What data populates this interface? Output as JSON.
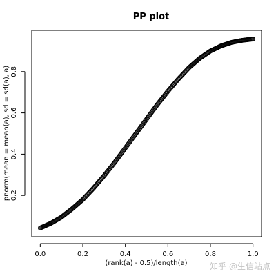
{
  "chart_data": {
    "type": "scatter",
    "title": "PP plot",
    "xlabel": "(rank(a) - 0.5)/length(a)",
    "ylabel": "pnorm(mean = mean(a), sd = sd(a), a)",
    "xlim": [
      -0.04,
      1.04
    ],
    "ylim": [
      0.0,
      1.0
    ],
    "xticks": [
      0.0,
      0.2,
      0.4,
      0.6,
      0.8,
      1.0
    ],
    "xtick_labels": [
      "0.0",
      "0.2",
      "0.4",
      "0.6",
      "0.8",
      "1.0"
    ],
    "yticks": [
      0.2,
      0.4,
      0.6,
      0.8
    ],
    "ytick_labels": [
      "0.2",
      "0.4",
      "0.6",
      "0.8"
    ],
    "point_style": "open-circle",
    "colors": {
      "points": "#000000",
      "axes": "#000000"
    },
    "series": [
      {
        "x": [
          0.0,
          0.05,
          0.1,
          0.15,
          0.2,
          0.25,
          0.3,
          0.35,
          0.4,
          0.45,
          0.5,
          0.55,
          0.6,
          0.65,
          0.7,
          0.75,
          0.8,
          0.85,
          0.9,
          0.95,
          1.0
        ],
        "y": [
          0.042,
          0.065,
          0.095,
          0.135,
          0.18,
          0.235,
          0.295,
          0.36,
          0.43,
          0.5,
          0.57,
          0.64,
          0.705,
          0.765,
          0.82,
          0.865,
          0.9,
          0.925,
          0.942,
          0.952,
          0.958
        ]
      }
    ]
  },
  "watermark": "知乎 @生信站点"
}
